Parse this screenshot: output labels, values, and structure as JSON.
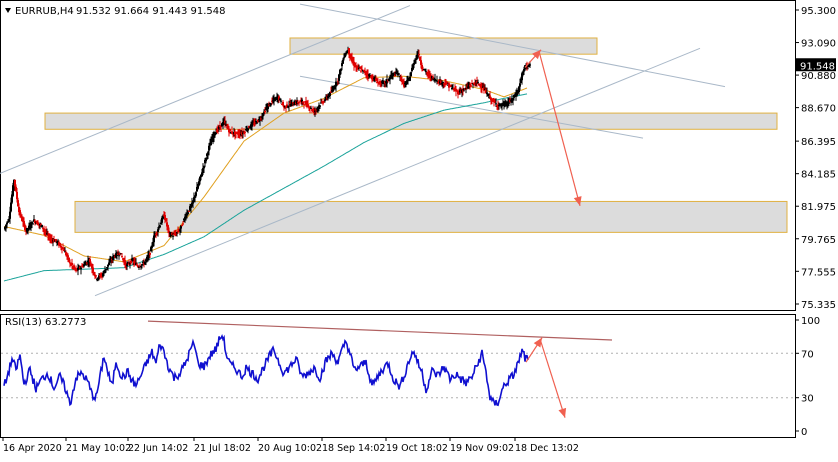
{
  "header": {
    "symbol": "EURRUB,H4",
    "ohlc": "91.532 91.664 91.443 91.548",
    "rsi_label": "RSI(13) 63.2773"
  },
  "price_axis": {
    "ticks": [
      "95.300",
      "93.090",
      "90.880",
      "88.670",
      "86.395",
      "84.185",
      "81.975",
      "79.765",
      "77.555",
      "75.335"
    ],
    "current": "91.548"
  },
  "rsi_axis": {
    "ticks": [
      "100",
      "70",
      "30",
      "0"
    ]
  },
  "time_axis": {
    "labels": [
      "16 Apr 2020",
      "21 May 10:02",
      "22 Jun 14:02",
      "21 Jul 18:02",
      "20 Aug 10:02",
      "18 Sep 14:02",
      "19 Oct 18:02",
      "19 Nov 09:02",
      "18 Dec 13:02"
    ]
  },
  "colors": {
    "bull_candle": "#000000",
    "bear_candle": "#e00000",
    "ma_fast": "#e0a020",
    "ma_slow": "#1aa39a",
    "rsi_line": "#1010d0",
    "channel": "#a9b8c8",
    "zone_fill": "#d6d6d6",
    "zone_border": "#e0b040",
    "arrow": "#f06050",
    "rsi_trendline": "#b06060"
  },
  "chart_data": [
    {
      "type": "candlestick",
      "title": "EURRUB,H4",
      "ylim": [
        75.335,
        95.3
      ],
      "x_labels": [
        "16 Apr 2020",
        "21 May 10:02",
        "22 Jun 14:02",
        "21 Jul 18:02",
        "20 Aug 10:02",
        "18 Sep 14:02",
        "19 Oct 18:02",
        "19 Nov 09:02",
        "18 Dec 13:02"
      ],
      "last_price": 91.548,
      "close_path": [
        [
          0,
          80.4
        ],
        [
          5,
          81.2
        ],
        [
          10,
          83.8
        ],
        [
          15,
          81.6
        ],
        [
          22,
          80.3
        ],
        [
          30,
          81.0
        ],
        [
          38,
          80.6
        ],
        [
          45,
          79.8
        ],
        [
          52,
          79.6
        ],
        [
          60,
          79.0
        ],
        [
          66,
          78.1
        ],
        [
          72,
          77.6
        ],
        [
          78,
          77.9
        ],
        [
          85,
          78.3
        ],
        [
          92,
          77.1
        ],
        [
          98,
          77.3
        ],
        [
          104,
          78.0
        ],
        [
          110,
          78.6
        ],
        [
          116,
          78.8
        ],
        [
          122,
          77.9
        ],
        [
          128,
          78.3
        ],
        [
          134,
          77.9
        ],
        [
          140,
          78.1
        ],
        [
          146,
          78.8
        ],
        [
          150,
          79.9
        ],
        [
          155,
          80.6
        ],
        [
          160,
          81.4
        ],
        [
          165,
          80.1
        ],
        [
          170,
          80.0
        ],
        [
          176,
          80.4
        ],
        [
          182,
          81.4
        ],
        [
          188,
          82.1
        ],
        [
          194,
          83.4
        ],
        [
          200,
          84.8
        ],
        [
          205,
          86.0
        ],
        [
          210,
          86.9
        ],
        [
          215,
          87.3
        ],
        [
          220,
          87.7
        ],
        [
          226,
          87.0
        ],
        [
          232,
          86.9
        ],
        [
          238,
          86.9
        ],
        [
          244,
          87.3
        ],
        [
          250,
          87.6
        ],
        [
          256,
          87.9
        ],
        [
          262,
          88.6
        ],
        [
          268,
          89.1
        ],
        [
          274,
          89.4
        ],
        [
          280,
          88.7
        ],
        [
          286,
          88.9
        ],
        [
          292,
          89.0
        ],
        [
          298,
          89.1
        ],
        [
          304,
          88.8
        ],
        [
          310,
          88.4
        ],
        [
          316,
          88.9
        ],
        [
          322,
          89.3
        ],
        [
          328,
          89.8
        ],
        [
          334,
          90.6
        ],
        [
          340,
          92.2
        ],
        [
          344,
          92.6
        ],
        [
          348,
          91.8
        ],
        [
          352,
          91.4
        ],
        [
          358,
          91.2
        ],
        [
          364,
          90.9
        ],
        [
          370,
          90.6
        ],
        [
          376,
          90.3
        ],
        [
          382,
          90.4
        ],
        [
          388,
          90.9
        ],
        [
          394,
          91.0
        ],
        [
          400,
          90.2
        ],
        [
          405,
          90.6
        ],
        [
          410,
          91.8
        ],
        [
          414,
          92.4
        ],
        [
          418,
          91.4
        ],
        [
          424,
          90.9
        ],
        [
          430,
          90.6
        ],
        [
          436,
          90.4
        ],
        [
          442,
          90.3
        ],
        [
          448,
          90.0
        ],
        [
          454,
          89.7
        ],
        [
          460,
          89.9
        ],
        [
          466,
          90.2
        ],
        [
          472,
          90.4
        ],
        [
          478,
          90.1
        ],
        [
          484,
          89.5
        ],
        [
          490,
          89.0
        ],
        [
          496,
          88.8
        ],
        [
          502,
          88.9
        ],
        [
          508,
          89.2
        ],
        [
          514,
          89.8
        ],
        [
          518,
          90.9
        ],
        [
          522,
          91.6
        ],
        [
          526,
          91.5
        ]
      ],
      "overlays": [
        {
          "name": "",
          "color": "#e0a020",
          "points": [
            [
              0,
              80.6
            ],
            [
              40,
              80.0
            ],
            [
              80,
              78.6
            ],
            [
              120,
              78.2
            ],
            [
              160,
              79.3
            ],
            [
              200,
              82.6
            ],
            [
              240,
              86.4
            ],
            [
              280,
              88.3
            ],
            [
              320,
              89.3
            ],
            [
              360,
              90.7
            ],
            [
              400,
              90.8
            ],
            [
              440,
              90.5
            ],
            [
              480,
              89.9
            ],
            [
              500,
              89.4
            ],
            [
              523,
              90.0
            ]
          ]
        },
        {
          "name": "",
          "color": "#1aa39a",
          "points": [
            [
              0,
              76.9
            ],
            [
              40,
              77.6
            ],
            [
              80,
              77.7
            ],
            [
              120,
              77.8
            ],
            [
              160,
              78.7
            ],
            [
              200,
              79.9
            ],
            [
              240,
              81.7
            ],
            [
              280,
              83.2
            ],
            [
              320,
              84.7
            ],
            [
              360,
              86.3
            ],
            [
              400,
              87.6
            ],
            [
              440,
              88.5
            ],
            [
              480,
              89.0
            ],
            [
              500,
              89.3
            ],
            [
              523,
              89.6
            ]
          ]
        }
      ],
      "zones": [
        {
          "x0": 290,
          "x1": 597,
          "y_low": 92.3,
          "y_high": 93.4
        },
        {
          "x0": 45,
          "x1": 777,
          "y_low": 87.2,
          "y_high": 88.3
        },
        {
          "x0": 75,
          "x1": 787,
          "y_low": 80.2,
          "y_high": 82.3
        }
      ]
    },
    {
      "type": "line",
      "title": "RSI(13) 63.2773",
      "ylim": [
        0,
        100
      ],
      "series": [
        {
          "name": "RSI(13)",
          "last": 63.2773
        }
      ],
      "levels": [
        70,
        30
      ],
      "path": [
        [
          0,
          40
        ],
        [
          4,
          51
        ],
        [
          8,
          65
        ],
        [
          12,
          55
        ],
        [
          16,
          68
        ],
        [
          20,
          42
        ],
        [
          26,
          55
        ],
        [
          32,
          38
        ],
        [
          38,
          47
        ],
        [
          44,
          52
        ],
        [
          50,
          39
        ],
        [
          56,
          49
        ],
        [
          62,
          37
        ],
        [
          66,
          24
        ],
        [
          72,
          48
        ],
        [
          78,
          52
        ],
        [
          84,
          44
        ],
        [
          88,
          33
        ],
        [
          92,
          30
        ],
        [
          96,
          48
        ],
        [
          100,
          68
        ],
        [
          104,
          52
        ],
        [
          108,
          40
        ],
        [
          112,
          63
        ],
        [
          118,
          48
        ],
        [
          124,
          53
        ],
        [
          128,
          45
        ],
        [
          132,
          41
        ],
        [
          138,
          52
        ],
        [
          144,
          64
        ],
        [
          148,
          71
        ],
        [
          152,
          61
        ],
        [
          156,
          79
        ],
        [
          160,
          71
        ],
        [
          164,
          59
        ],
        [
          170,
          48
        ],
        [
          176,
          52
        ],
        [
          182,
          62
        ],
        [
          186,
          72
        ],
        [
          190,
          79
        ],
        [
          194,
          61
        ],
        [
          200,
          58
        ],
        [
          206,
          68
        ],
        [
          212,
          74
        ],
        [
          216,
          84
        ],
        [
          219,
          86
        ],
        [
          222,
          70
        ],
        [
          226,
          60
        ],
        [
          232,
          56
        ],
        [
          238,
          49
        ],
        [
          242,
          57
        ],
        [
          248,
          52
        ],
        [
          254,
          47
        ],
        [
          260,
          58
        ],
        [
          266,
          68
        ],
        [
          270,
          73
        ],
        [
          276,
          60
        ],
        [
          280,
          52
        ],
        [
          286,
          58
        ],
        [
          292,
          65
        ],
        [
          298,
          49
        ],
        [
          304,
          52
        ],
        [
          310,
          57
        ],
        [
          316,
          48
        ],
        [
          322,
          63
        ],
        [
          328,
          70
        ],
        [
          334,
          62
        ],
        [
          338,
          72
        ],
        [
          342,
          81
        ],
        [
          346,
          70
        ],
        [
          350,
          55
        ],
        [
          356,
          58
        ],
        [
          362,
          62
        ],
        [
          368,
          41
        ],
        [
          372,
          46
        ],
        [
          378,
          55
        ],
        [
          384,
          61
        ],
        [
          390,
          46
        ],
        [
          396,
          40
        ],
        [
          402,
          55
        ],
        [
          406,
          66
        ],
        [
          410,
          72
        ],
        [
          414,
          61
        ],
        [
          418,
          53
        ],
        [
          422,
          37
        ],
        [
          428,
          54
        ],
        [
          434,
          50
        ],
        [
          440,
          58
        ],
        [
          446,
          47
        ],
        [
          452,
          51
        ],
        [
          458,
          46
        ],
        [
          462,
          43
        ],
        [
          468,
          49
        ],
        [
          474,
          61
        ],
        [
          478,
          70
        ],
        [
          482,
          53
        ],
        [
          486,
          30
        ],
        [
          490,
          24
        ],
        [
          494,
          26
        ],
        [
          500,
          41
        ],
        [
          506,
          47
        ],
        [
          510,
          51
        ],
        [
          514,
          61
        ],
        [
          518,
          72
        ],
        [
          521,
          66
        ],
        [
          524,
          63
        ]
      ]
    }
  ]
}
